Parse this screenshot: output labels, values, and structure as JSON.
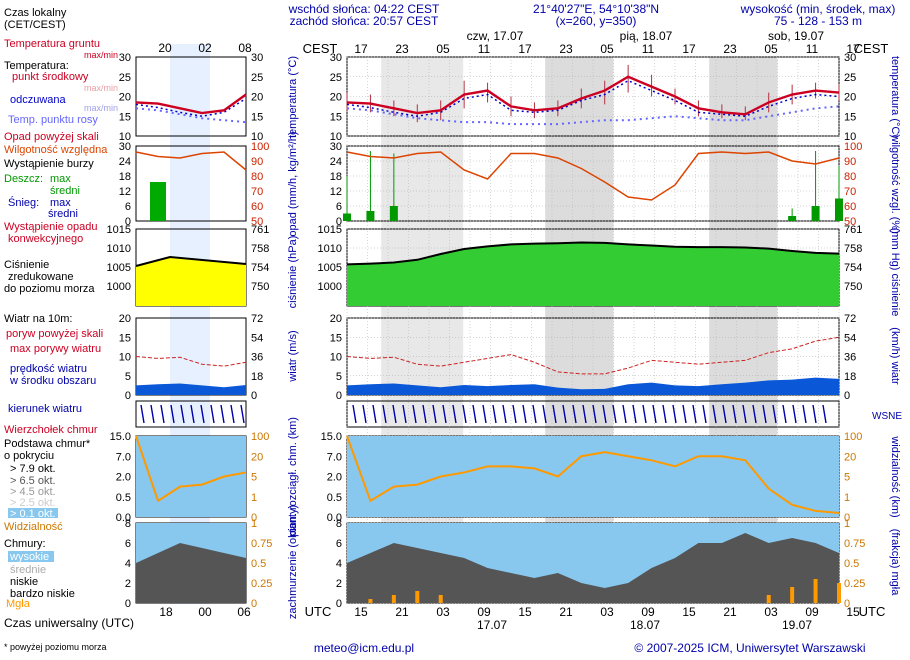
{
  "header": {
    "sunrise": "wschód słońca: 04:22 CEST",
    "sunset": "zachód słońca: 20:57 CEST",
    "coords": "21°40'27\"E, 54°10'38\"N",
    "grid": "(x=260,  y=350)",
    "height_title": "wysokość (min, środek, max)",
    "height_values": "75 - 128 - 153 m"
  },
  "legend": {
    "local_time": [
      "Czas lokalny",
      "(CET/CEST)"
    ],
    "soil_temp": [
      "Temperatura gruntu",
      "max/min"
    ],
    "temperature": "Temperatura:",
    "mid_point": "punkt środkowy",
    "max_min": "max/min",
    "felt": "odczuwana",
    "felt_max_min": "max/min",
    "dew_point": "Temp. punktu rosy",
    "precip_above": "Opad powyżej skali",
    "humidity": "Wilgotność względna",
    "storm": "Wystąpienie burzy",
    "rain": "Deszcz:",
    "rain_max": "max",
    "rain_mid": "średni",
    "snow": "Śnieg:",
    "snow_max": "max",
    "snow_mid": "średni",
    "conv": [
      "Wystąpienie opadu",
      "konwekcyjnego"
    ],
    "pressure": [
      "Ciśnienie",
      "zredukowane",
      "do poziomu morza"
    ],
    "wind_title": "Wiatr na 10m:",
    "gust_above": "poryw powyżej skali",
    "gust_max": "max porywy wiatru",
    "wind_mid": [
      "prędkość wiatru",
      "w środku obszaru"
    ],
    "wind_dir": "kierunek wiatru",
    "cloud_top": "Wierzchołek chmur",
    "cloud_base": [
      "Podstawa chmur*",
      "o pokryciu"
    ],
    "okt": [
      "> 7.9 okt.",
      "> 6.5 okt.",
      "> 4.5 okt.",
      "> 2.5 okt.",
      "> 0.1 okt."
    ],
    "visibility": "Widzialność",
    "clouds": "Chmury:",
    "high": "wysokie",
    "mid": "średnie",
    "low": "niskie",
    "very_low": "bardzo niskie",
    "fog": "Mgła",
    "utc": "Czas uniwersalny (UTC)",
    "footnote": "* powyżej poziomu morza"
  },
  "footer": {
    "email": "meteo@icm.edu.pl",
    "copyright": "© 2007-2025 ICM, Uniwersytet Warszawski"
  },
  "colors": {
    "temp": "#cc0022",
    "felt": "#0000cc",
    "dew": "#6666ff",
    "humidity": "#dd4400",
    "rain": "#009900",
    "pressure_fill": "#ffff00",
    "wind_fill": "#0a58d8",
    "wind_dir": "#0000aa",
    "sky": "#88c8ee",
    "orange": "#ff9900",
    "night": "#dcdcdc"
  },
  "chart_data": {
    "type": "line",
    "local_tz": "CEST",
    "utc_tz": "UTC",
    "days": [
      {
        "label": "czw, 17.07",
        "utc_label": "17.07"
      },
      {
        "label": "pią, 18.07",
        "utc_label": "18.07"
      },
      {
        "label": "sob, 19.07",
        "utc_label": "19.07"
      }
    ],
    "local_ticks": [
      "17",
      "23",
      "05",
      "11",
      "17",
      "23",
      "05",
      "11",
      "17",
      "23",
      "05",
      "11",
      "17"
    ],
    "utc_ticks": [
      "15",
      "21",
      "03",
      "09",
      "15",
      "21",
      "03",
      "09",
      "15",
      "21",
      "03",
      "09",
      "15"
    ],
    "mini_local_ticks": [
      "20",
      "02",
      "08"
    ],
    "mini_utc_ticks": [
      "18",
      "00",
      "06"
    ],
    "hours": [
      0,
      6,
      12,
      18,
      24,
      30,
      36,
      42,
      48,
      54,
      60,
      66,
      72
    ],
    "panels": {
      "temperature": {
        "ylabel": "temperatura (°C)",
        "ylim": [
          10,
          30
        ],
        "ticks": [
          "30",
          "25",
          "20",
          "15",
          "10"
        ],
        "mid": [
          18.5,
          18.2,
          17,
          15.8,
          16.5,
          20.5,
          21.5,
          17.5,
          16.5,
          17,
          19.5,
          21.5,
          25,
          22.5,
          20,
          17,
          16,
          15.5,
          18.5,
          20.5,
          21.5,
          21
        ],
        "felt": [
          18,
          17.2,
          16,
          15,
          16,
          19.5,
          20.5,
          16.5,
          16,
          16.5,
          19,
          20.5,
          24,
          21.5,
          19,
          16,
          15.5,
          15,
          17.5,
          19.5,
          20.5,
          20
        ],
        "dew": [
          17,
          16.5,
          15.5,
          14.5,
          14,
          13.5,
          13.5,
          13,
          13,
          13,
          13.5,
          14,
          14,
          14.5,
          15,
          14.5,
          14,
          14,
          15,
          16,
          17,
          17.5
        ],
        "max": [
          21,
          20.5,
          19,
          18,
          19,
          24,
          23.5,
          20,
          18.5,
          19,
          22,
          24,
          28,
          25.5,
          22,
          19,
          18,
          17.5,
          21,
          23,
          23.5,
          23
        ],
        "min": [
          16.5,
          16,
          15,
          13.5,
          14,
          17,
          18.5,
          15,
          14.5,
          15,
          17,
          18,
          21,
          20,
          18,
          15,
          14.5,
          14,
          16,
          18,
          19.5,
          19
        ]
      },
      "precipitation": {
        "ylabel": "opad (mm/h, kg/m²/h)",
        "ylim": [
          0,
          30
        ],
        "ticks": [
          "30",
          "24",
          "18",
          "12",
          "6",
          "0"
        ],
        "humidity_label": "wilgotność wzgl. (%)",
        "humidity_ticks": [
          "100",
          "90",
          "80",
          "70",
          "60",
          "50"
        ],
        "humidity": [
          96,
          93,
          92,
          95,
          96,
          84,
          78,
          95,
          95,
          92,
          85,
          76,
          66,
          64,
          74,
          95,
          96,
          95,
          96,
          90,
          88,
          92
        ],
        "rain_max": [
          18,
          28,
          27,
          0,
          0,
          0,
          0,
          0,
          0,
          0,
          0,
          0,
          0,
          0,
          0,
          0,
          0,
          0,
          0,
          5,
          28,
          22
        ],
        "rain_mid": [
          3,
          4,
          6,
          0,
          0,
          0,
          0,
          0,
          0,
          0,
          0,
          0,
          0,
          0,
          0,
          0,
          0,
          0,
          0,
          2,
          6,
          9
        ]
      },
      "pressure": {
        "ylabel": "ciśnienie (hPa)",
        "ylim": [
          995,
          1015
        ],
        "ticks": [
          "1015",
          "1010",
          "1005",
          "1000"
        ],
        "mmhg_label": "(mm Hg) ciśnienie",
        "mmhg_ticks": [
          "761",
          "758",
          "754",
          "750"
        ],
        "values": [
          1005.8,
          1006,
          1006.3,
          1007,
          1008.5,
          1009.8,
          1010.5,
          1011,
          1011.2,
          1011.3,
          1011.5,
          1011.4,
          1011,
          1010.7,
          1010.4,
          1010.3,
          1010.3,
          1010.2,
          1009.9,
          1009.3,
          1008.8,
          1008.6
        ]
      },
      "wind": {
        "ylabel": "wiatr (m/s)",
        "ylim": [
          0,
          20
        ],
        "ticks": [
          "20",
          "15",
          "10",
          "5",
          "0"
        ],
        "kmh_label": "(km/h) wiatr",
        "kmh_ticks": [
          "72",
          "54",
          "36",
          "18",
          "0"
        ],
        "speed": [
          2.5,
          2.8,
          3,
          2.5,
          2,
          2.6,
          2.3,
          2.6,
          2.8,
          1.9,
          1.5,
          1.6,
          2.8,
          3.2,
          2.5,
          2.3,
          2.8,
          3.2,
          3.8,
          4,
          4.5,
          4.2
        ],
        "gust": [
          10,
          9.5,
          9.8,
          8,
          7.5,
          8.5,
          9.5,
          10.5,
          8.5,
          6,
          5.5,
          5.5,
          7,
          9,
          8.5,
          8,
          8.5,
          9,
          11,
          12,
          14,
          15
        ]
      },
      "visibility": {
        "ylabel": "pion. rozciągł. chm. (km)",
        "ylim": [
          0,
          15
        ],
        "ticks": [
          "15.0",
          "7.0",
          "2.0",
          "0.5",
          "0.0"
        ],
        "vis_label": "widzialność (km)",
        "vis_ticks": [
          "100",
          "20",
          "5",
          "1",
          "0"
        ],
        "visibility": [
          40,
          8,
          15,
          16,
          20,
          22,
          25,
          25,
          24,
          20,
          30,
          32,
          30,
          28,
          25,
          30,
          30,
          28,
          14,
          6,
          3,
          2
        ]
      },
      "clouds": {
        "ylabel": "zachmurzenie (oktanty)",
        "ylim": [
          0,
          8
        ],
        "ticks": [
          "8",
          "6",
          "4",
          "2",
          "0"
        ],
        "fog_label": "(frakcja) mgła",
        "fog_ticks": [
          "1",
          "0.75",
          "0.5",
          "0.25",
          "0"
        ],
        "low": [
          4,
          5,
          6,
          5.5,
          5,
          4.5,
          3.5,
          3,
          2.5,
          3,
          2,
          1.5,
          2,
          3.5,
          4.5,
          6,
          6,
          7,
          6,
          6.5,
          6,
          5
        ],
        "fog": [
          0,
          0.05,
          0.1,
          0.15,
          0.1,
          0,
          0,
          0,
          0,
          0,
          0,
          0,
          0,
          0,
          0,
          0,
          0,
          0,
          0.1,
          0.2,
          0.3,
          0.25
        ]
      }
    }
  }
}
